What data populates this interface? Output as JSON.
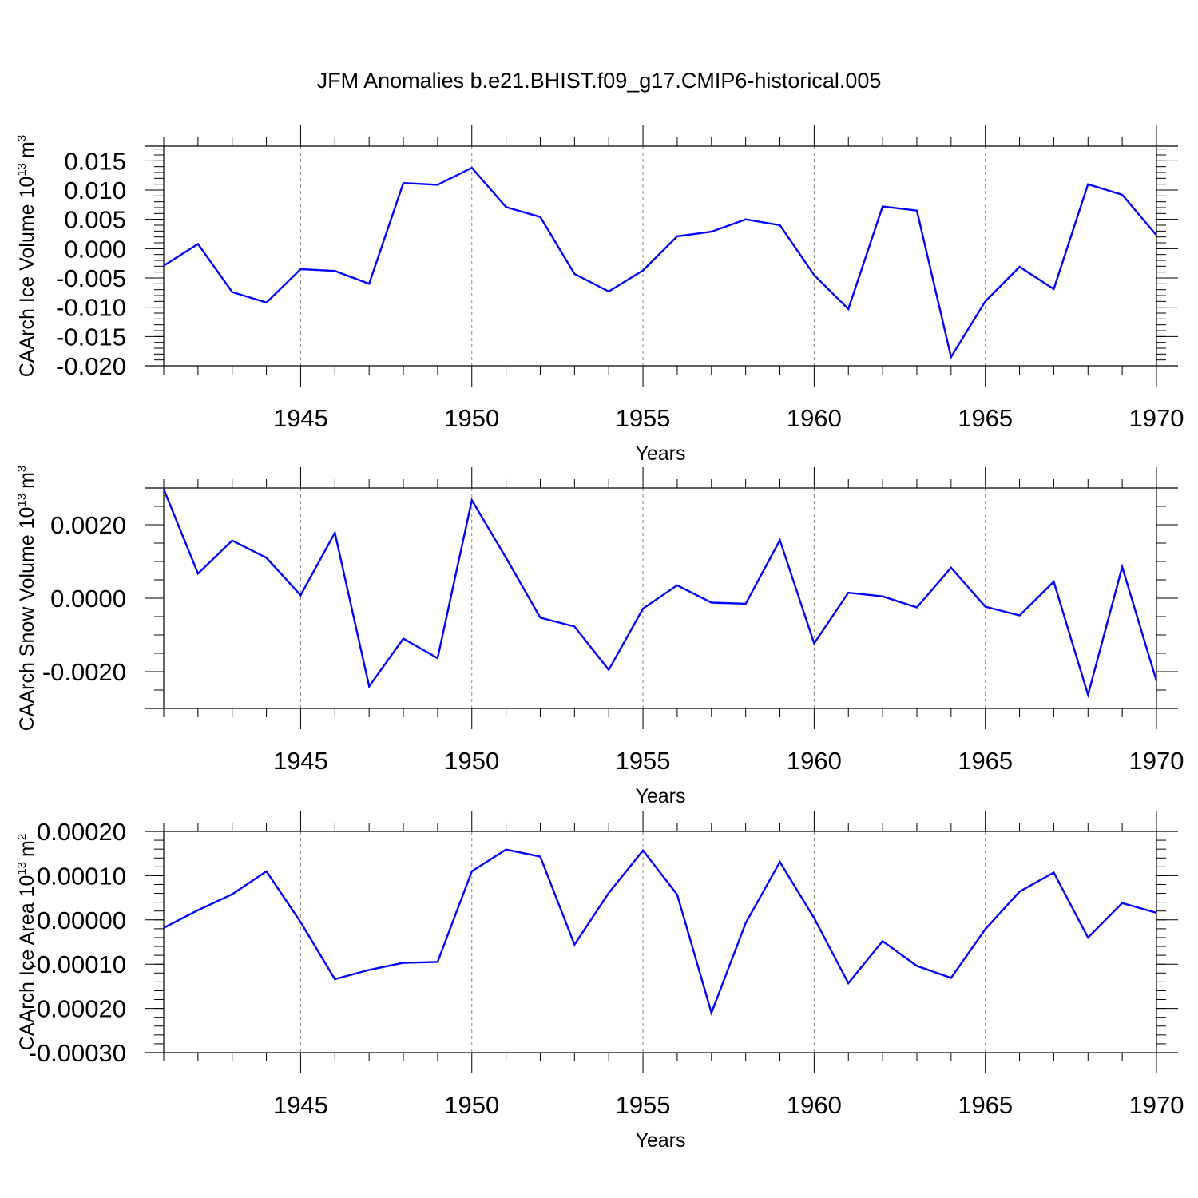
{
  "title": "JFM Anomalies b.e21.BHIST.f09_g17.CMIP6-historical.005",
  "line_color": "#0000ff",
  "chart_data": [
    {
      "type": "line",
      "ylabel_main": "CAArch Ice Volume 10",
      "ylabel_sup": "13",
      "ylabel_unit": "m",
      "ylabel_unit_sup": "3",
      "xlabel": "Years",
      "xlim": [
        1941,
        1970
      ],
      "ylim": [
        -0.02,
        0.0175
      ],
      "x_ticks": [
        "1945",
        "1950",
        "1955",
        "1960",
        "1965",
        "1970"
      ],
      "y_ticks": [
        "0.015",
        "0.010",
        "0.005",
        "0.000",
        "-0.005",
        "-0.010",
        "-0.015",
        "-0.020"
      ],
      "y_tick_values": [
        0.015,
        0.01,
        0.005,
        0.0,
        -0.005,
        -0.01,
        -0.015,
        -0.02
      ],
      "y_minor_step": 0.001,
      "grid": "dashed vertical at 5-year ticks",
      "x": [
        1941,
        1942,
        1943,
        1944,
        1945,
        1946,
        1947,
        1948,
        1949,
        1950,
        1951,
        1952,
        1953,
        1954,
        1955,
        1956,
        1957,
        1958,
        1959,
        1960,
        1961,
        1962,
        1963,
        1964,
        1965,
        1966,
        1967,
        1968,
        1969,
        1970
      ],
      "values": [
        -0.0029,
        0.0008,
        -0.0074,
        -0.0092,
        -0.0035,
        -0.0038,
        -0.006,
        0.0112,
        0.0109,
        0.0138,
        0.0071,
        0.0054,
        -0.0043,
        -0.0073,
        -0.0037,
        0.0021,
        0.0029,
        0.005,
        0.004,
        -0.0045,
        -0.0103,
        0.0072,
        0.0065,
        -0.0185,
        -0.009,
        -0.0031,
        -0.0069,
        0.011,
        0.0092,
        0.0023
      ]
    },
    {
      "type": "line",
      "ylabel_main": "CAArch Snow Volume 10",
      "ylabel_sup": "13",
      "ylabel_unit": "m",
      "ylabel_unit_sup": "3",
      "xlabel": "Years",
      "xlim": [
        1941,
        1970
      ],
      "ylim": [
        -0.003,
        0.003
      ],
      "x_ticks": [
        "1945",
        "1950",
        "1955",
        "1960",
        "1965",
        "1970"
      ],
      "y_ticks": [
        "0.0020",
        "0.0000",
        "-0.0020"
      ],
      "y_tick_values": [
        0.002,
        0.0,
        -0.002
      ],
      "y_minor_step": 0.0005,
      "grid": "dashed vertical at 5-year ticks",
      "x": [
        1941,
        1942,
        1943,
        1944,
        1945,
        1946,
        1947,
        1948,
        1949,
        1950,
        1951,
        1952,
        1953,
        1954,
        1955,
        1956,
        1957,
        1958,
        1959,
        1960,
        1961,
        1962,
        1963,
        1964,
        1965,
        1966,
        1967,
        1968,
        1969,
        1970
      ],
      "values": [
        0.00297,
        0.00067,
        0.00157,
        0.0011,
        8e-05,
        0.00178,
        -0.0024,
        -0.0011,
        -0.00163,
        0.00267,
        0.0011,
        -0.00053,
        -0.00077,
        -0.00195,
        -0.00028,
        0.00035,
        -0.00012,
        -0.00015,
        0.00158,
        -0.00123,
        0.00015,
        5e-05,
        -0.00025,
        0.00083,
        -0.00023,
        -0.00047,
        0.00045,
        -0.00263,
        0.00085,
        -0.00225
      ]
    },
    {
      "type": "line",
      "ylabel_main": "CAArch Ice Area 10",
      "ylabel_sup": "13",
      "ylabel_unit": "m",
      "ylabel_unit_sup": "2",
      "xlabel": "Years",
      "xlim": [
        1941,
        1970
      ],
      "ylim": [
        -0.0003,
        0.0002
      ],
      "x_ticks": [
        "1945",
        "1950",
        "1955",
        "1960",
        "1965",
        "1970"
      ],
      "y_ticks": [
        "0.00020",
        "0.00010",
        "0.00000",
        "-0.00010",
        "-0.00020",
        "-0.00030"
      ],
      "y_tick_values": [
        0.0002,
        0.0001,
        0.0,
        -0.0001,
        -0.0002,
        -0.0003
      ],
      "y_minor_step": 2e-05,
      "grid": "dashed vertical at 5-year ticks",
      "x": [
        1941,
        1942,
        1943,
        1944,
        1945,
        1946,
        1947,
        1948,
        1949,
        1950,
        1951,
        1952,
        1953,
        1954,
        1955,
        1956,
        1957,
        1958,
        1959,
        1960,
        1961,
        1962,
        1963,
        1964,
        1965,
        1966,
        1967,
        1968,
        1969,
        1970
      ],
      "values": [
        -1.8e-05,
        2.2e-05,
        5.8e-05,
        0.00011,
        -5e-06,
        -0.000134,
        -0.000113,
        -9.7e-05,
        -9.5e-05,
        0.00011,
        0.000159,
        0.000143,
        -5.6e-05,
        6.1e-05,
        0.000157,
        5.7e-05,
        -0.00021,
        -7e-06,
        0.000131,
        4e-06,
        -0.000143,
        -4.8e-05,
        -0.000104,
        -0.000131,
        -2.1e-05,
        6.4e-05,
        0.000107,
        -4e-05,
        3.8e-05,
        1.6e-05
      ]
    }
  ]
}
